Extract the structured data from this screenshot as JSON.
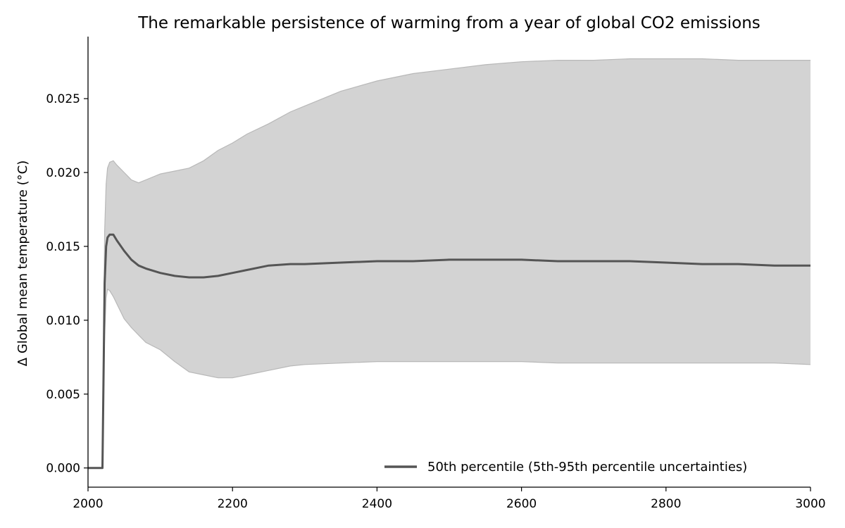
{
  "chart_data": {
    "type": "line",
    "title": "The remarkable persistence of warming from a year of global CO2 emissions",
    "xlabel": "",
    "ylabel": "Δ Global mean temperature (°C)",
    "xlim": [
      2000,
      3000
    ],
    "ylim": [
      -0.0013,
      0.0292
    ],
    "x_ticks": [
      2000,
      2200,
      2400,
      2600,
      2800,
      3000
    ],
    "y_ticks": [
      0.0,
      0.005,
      0.01,
      0.015,
      0.02,
      0.025
    ],
    "y_tick_labels": [
      "0.000",
      "0.005",
      "0.010",
      "0.015",
      "0.020",
      "0.025"
    ],
    "grid": false,
    "legend_position": "bottom-right",
    "colors": {
      "median": "#555555",
      "band_fill": "#d3d3d3",
      "band_edge": "#b8b8b8",
      "axis": "#000000"
    },
    "series": [
      {
        "name": "50th percentile (5th-95th percentile uncertainties)",
        "role": "median",
        "x": [
          2000,
          2020,
          2021,
          2023,
          2025,
          2027,
          2030,
          2035,
          2040,
          2050,
          2060,
          2070,
          2080,
          2100,
          2120,
          2140,
          2160,
          2180,
          2200,
          2220,
          2250,
          2280,
          2300,
          2350,
          2400,
          2450,
          2500,
          2550,
          2600,
          2650,
          2700,
          2750,
          2800,
          2850,
          2900,
          2950,
          3000
        ],
        "y": [
          0,
          0,
          0.004,
          0.0125,
          0.015,
          0.0156,
          0.0158,
          0.0158,
          0.0154,
          0.0147,
          0.0141,
          0.0137,
          0.0135,
          0.0132,
          0.013,
          0.0129,
          0.0129,
          0.013,
          0.0132,
          0.0134,
          0.0137,
          0.0138,
          0.0138,
          0.0139,
          0.014,
          0.014,
          0.0141,
          0.0141,
          0.0141,
          0.014,
          0.014,
          0.014,
          0.0139,
          0.0138,
          0.0138,
          0.0137,
          0.0137
        ]
      },
      {
        "name": "",
        "role": "band",
        "x": [
          2021,
          2023,
          2025,
          2027,
          2030,
          2035,
          2040,
          2050,
          2060,
          2070,
          2080,
          2100,
          2120,
          2140,
          2160,
          2180,
          2200,
          2220,
          2250,
          2280,
          2300,
          2350,
          2400,
          2450,
          2500,
          2550,
          2600,
          2650,
          2700,
          2750,
          2800,
          2850,
          2900,
          2950,
          3000
        ],
        "upper": [
          0.006,
          0.016,
          0.0192,
          0.0203,
          0.0207,
          0.0208,
          0.0205,
          0.02,
          0.0195,
          0.0193,
          0.0195,
          0.0199,
          0.0201,
          0.0203,
          0.0208,
          0.0215,
          0.022,
          0.0226,
          0.0233,
          0.0241,
          0.0245,
          0.0255,
          0.0262,
          0.0267,
          0.027,
          0.0273,
          0.0275,
          0.0276,
          0.0276,
          0.0277,
          0.0277,
          0.0277,
          0.0276,
          0.0276,
          0.0276
        ],
        "lower": [
          0.003,
          0.009,
          0.0115,
          0.0121,
          0.012,
          0.0116,
          0.0111,
          0.0101,
          0.0095,
          0.009,
          0.0085,
          0.008,
          0.0072,
          0.0065,
          0.0063,
          0.0061,
          0.0061,
          0.0063,
          0.0066,
          0.0069,
          0.007,
          0.0071,
          0.0072,
          0.0072,
          0.0072,
          0.0072,
          0.0072,
          0.0071,
          0.0071,
          0.0071,
          0.0071,
          0.0071,
          0.0071,
          0.0071,
          0.007
        ]
      }
    ]
  }
}
